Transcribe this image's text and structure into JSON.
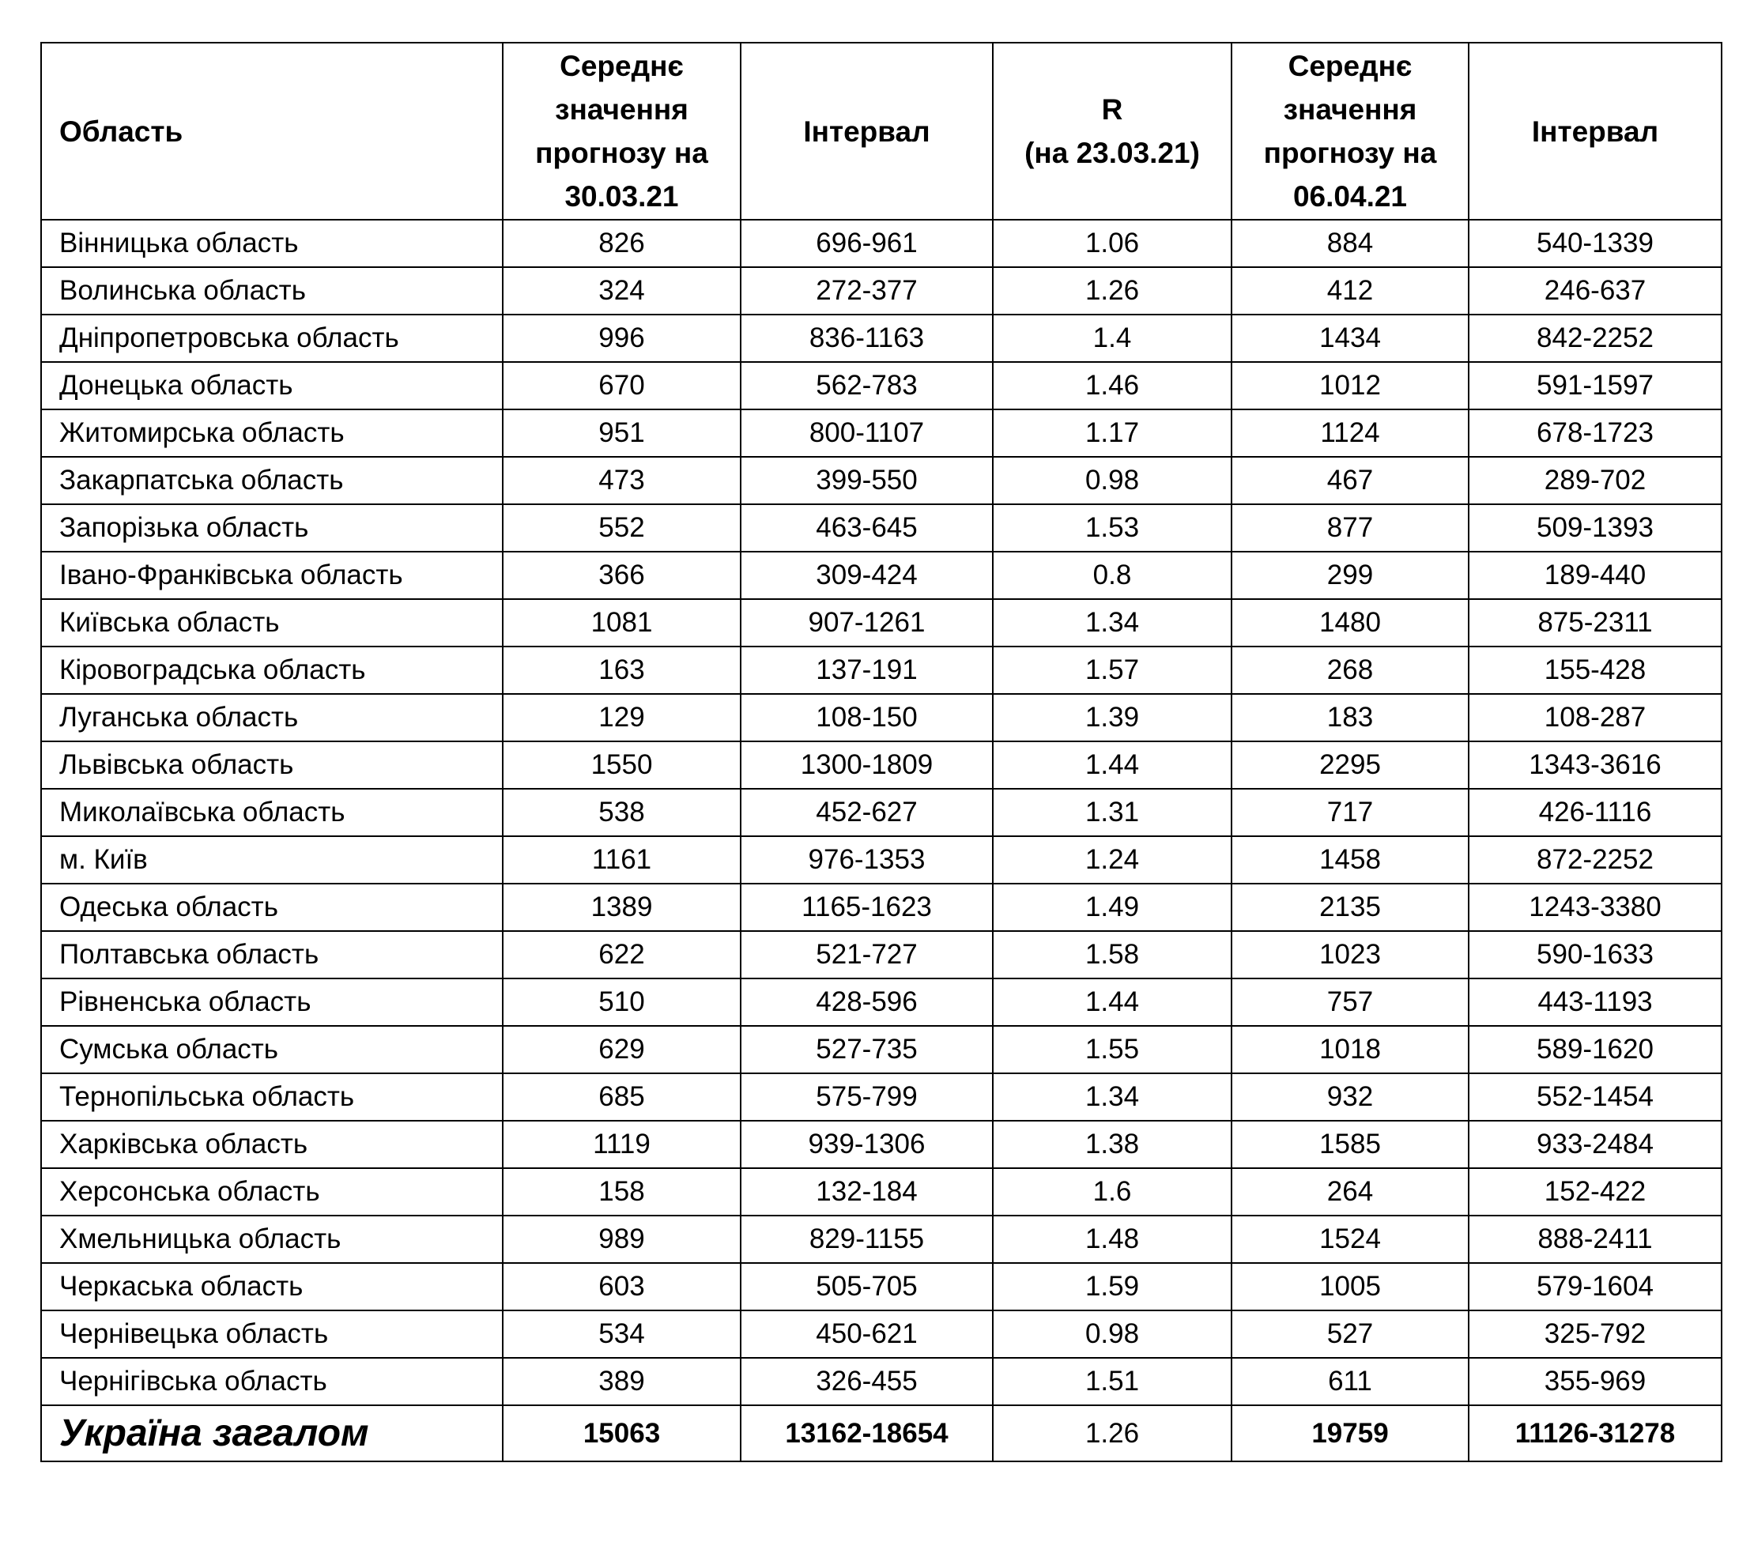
{
  "table": {
    "headers": [
      "Область",
      "Середнє значення прогнозу на 30.03.21",
      "Інтервал",
      "R\n(на 23.03.21)",
      "Середнє значення прогнозу на 06.04.21",
      "Інтервал"
    ],
    "rows": [
      [
        "Вінницька область",
        826,
        "696-961",
        1.06,
        884,
        "540-1339"
      ],
      [
        "Волинська область",
        324,
        "272-377",
        1.26,
        412,
        "246-637"
      ],
      [
        "Дніпропетровська область",
        996,
        "836-1163",
        1.4,
        1434,
        "842-2252"
      ],
      [
        "Донецька область",
        670,
        "562-783",
        1.46,
        1012,
        "591-1597"
      ],
      [
        "Житомирська область",
        951,
        "800-1107",
        1.17,
        1124,
        "678-1723"
      ],
      [
        "Закарпатська область",
        473,
        "399-550",
        0.98,
        467,
        "289-702"
      ],
      [
        "Запорізька область",
        552,
        "463-645",
        1.53,
        877,
        "509-1393"
      ],
      [
        "Івано-Франківська область",
        366,
        "309-424",
        0.8,
        299,
        "189-440"
      ],
      [
        "Київська область",
        1081,
        "907-1261",
        1.34,
        1480,
        "875-2311"
      ],
      [
        "Кіровоградська область",
        163,
        "137-191",
        1.57,
        268,
        "155-428"
      ],
      [
        "Луганська область",
        129,
        "108-150",
        1.39,
        183,
        "108-287"
      ],
      [
        "Львівська область",
        1550,
        "1300-1809",
        1.44,
        2295,
        "1343-3616"
      ],
      [
        "Миколаївська область",
        538,
        "452-627",
        1.31,
        717,
        "426-1116"
      ],
      [
        "м. Київ",
        1161,
        "976-1353",
        1.24,
        1458,
        "872-2252"
      ],
      [
        "Одеська область",
        1389,
        "1165-1623",
        1.49,
        2135,
        "1243-3380"
      ],
      [
        "Полтавська область",
        622,
        "521-727",
        1.58,
        1023,
        "590-1633"
      ],
      [
        "Рівненська область",
        510,
        "428-596",
        1.44,
        757,
        "443-1193"
      ],
      [
        "Сумська область",
        629,
        "527-735",
        1.55,
        1018,
        "589-1620"
      ],
      [
        "Тернопільська область",
        685,
        "575-799",
        1.34,
        932,
        "552-1454"
      ],
      [
        "Харківська область",
        1119,
        "939-1306",
        1.38,
        1585,
        "933-2484"
      ],
      [
        "Херсонська область",
        158,
        "132-184",
        1.6,
        264,
        "152-422"
      ],
      [
        "Хмельницька область",
        989,
        "829-1155",
        1.48,
        1524,
        "888-2411"
      ],
      [
        "Черкаська область",
        603,
        "505-705",
        1.59,
        1005,
        "579-1604"
      ],
      [
        "Чернівецька область",
        534,
        "450-621",
        0.98,
        527,
        "325-792"
      ],
      [
        "Чернігівська область",
        389,
        "326-455",
        1.51,
        611,
        "355-969"
      ]
    ],
    "total": [
      "Україна загалом",
      15063,
      "13162-18654",
      1.26,
      19759,
      "11126-31278"
    ]
  }
}
